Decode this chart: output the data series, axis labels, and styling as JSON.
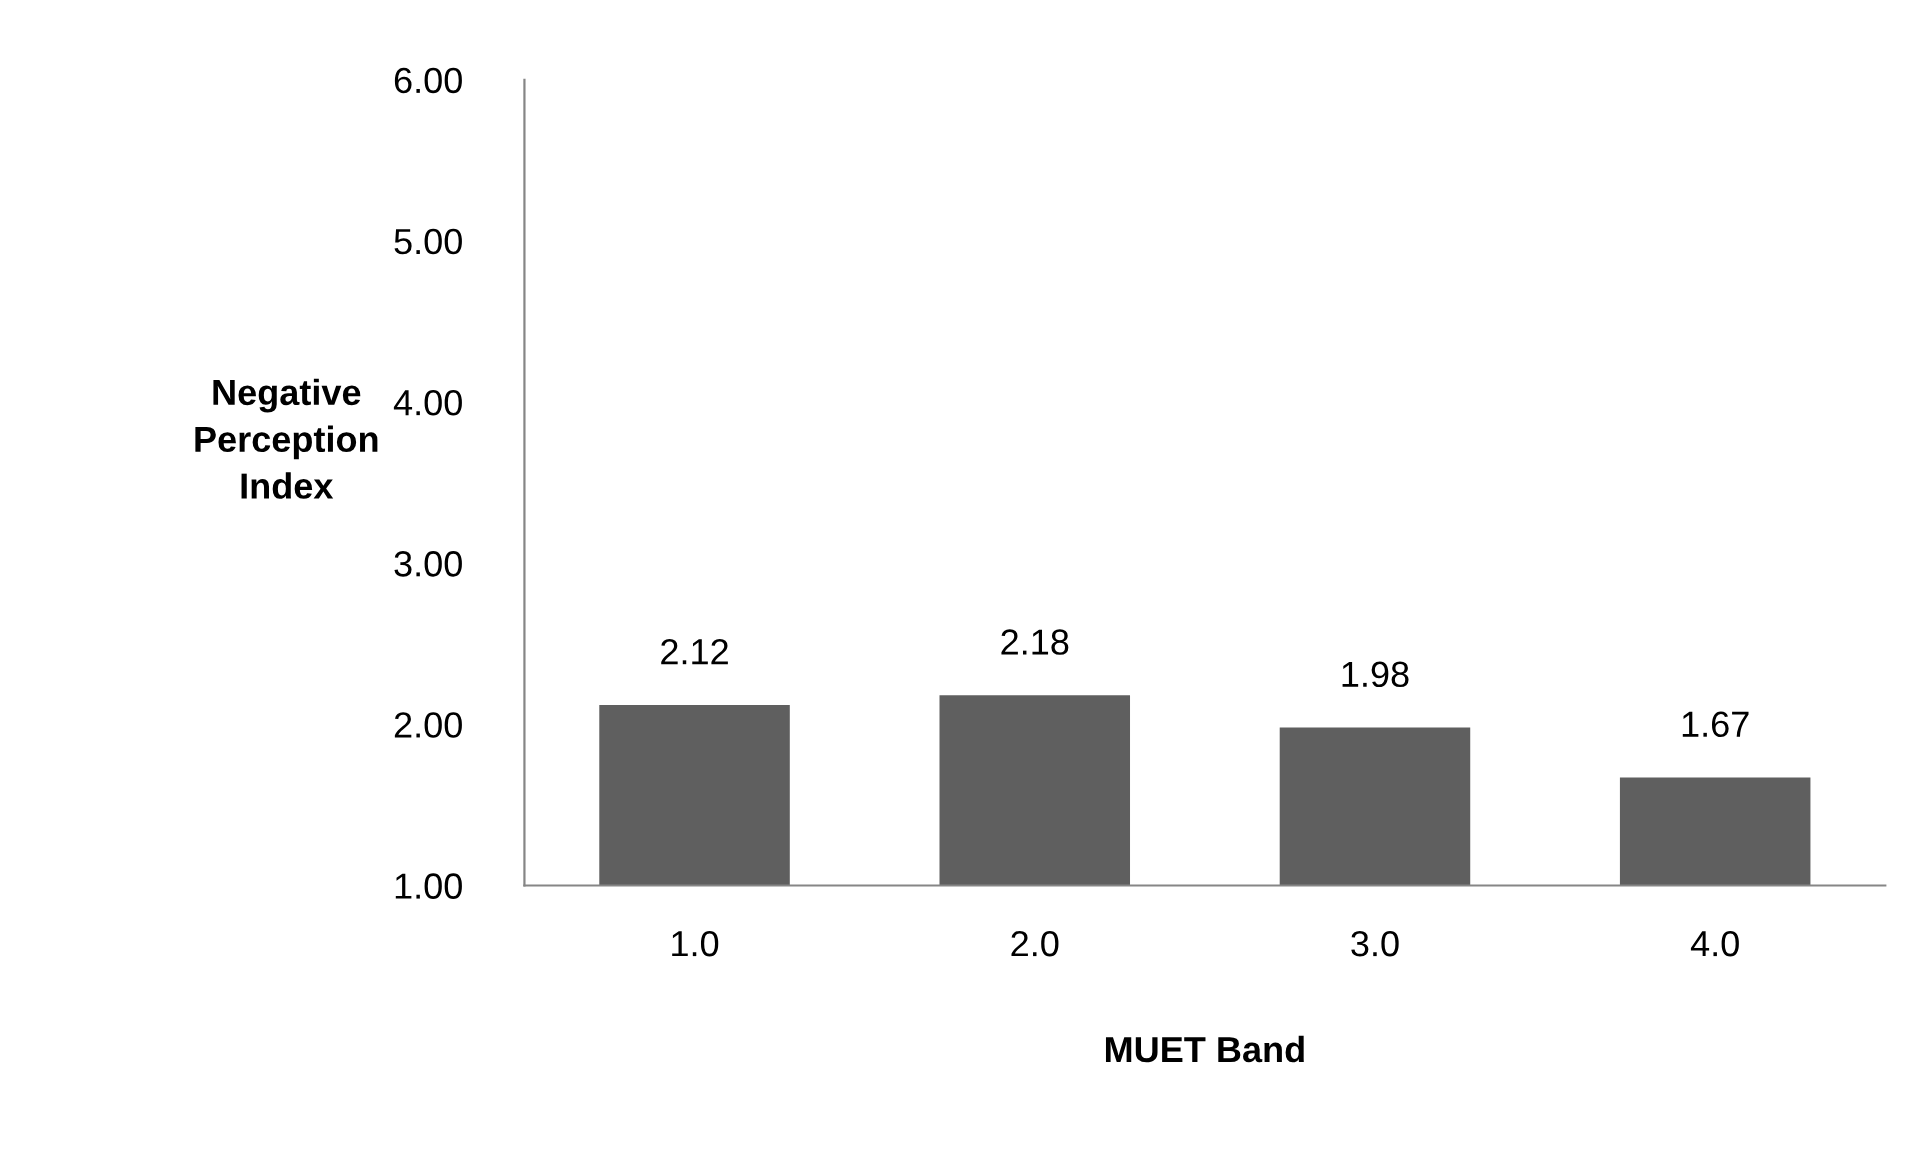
{
  "chart_data": {
    "type": "bar",
    "xlabel": "MUET Band",
    "ylabel": "Negative\nPerception\nIndex",
    "categories": [
      "1.0",
      "2.0",
      "3.0",
      "4.0"
    ],
    "values": [
      2.12,
      2.18,
      1.98,
      1.67
    ],
    "color": "#5f5f5f",
    "ylim": [
      1,
      6
    ],
    "yticks": [
      {
        "value": 1,
        "label": "1.00"
      },
      {
        "value": 2,
        "label": "2.00"
      },
      {
        "value": 3,
        "label": "3.00"
      },
      {
        "value": 4,
        "label": "4.00"
      },
      {
        "value": 5,
        "label": "5.00"
      },
      {
        "value": 6,
        "label": "6.00"
      }
    ],
    "data_labels": true,
    "grid": false,
    "legend": false
  }
}
